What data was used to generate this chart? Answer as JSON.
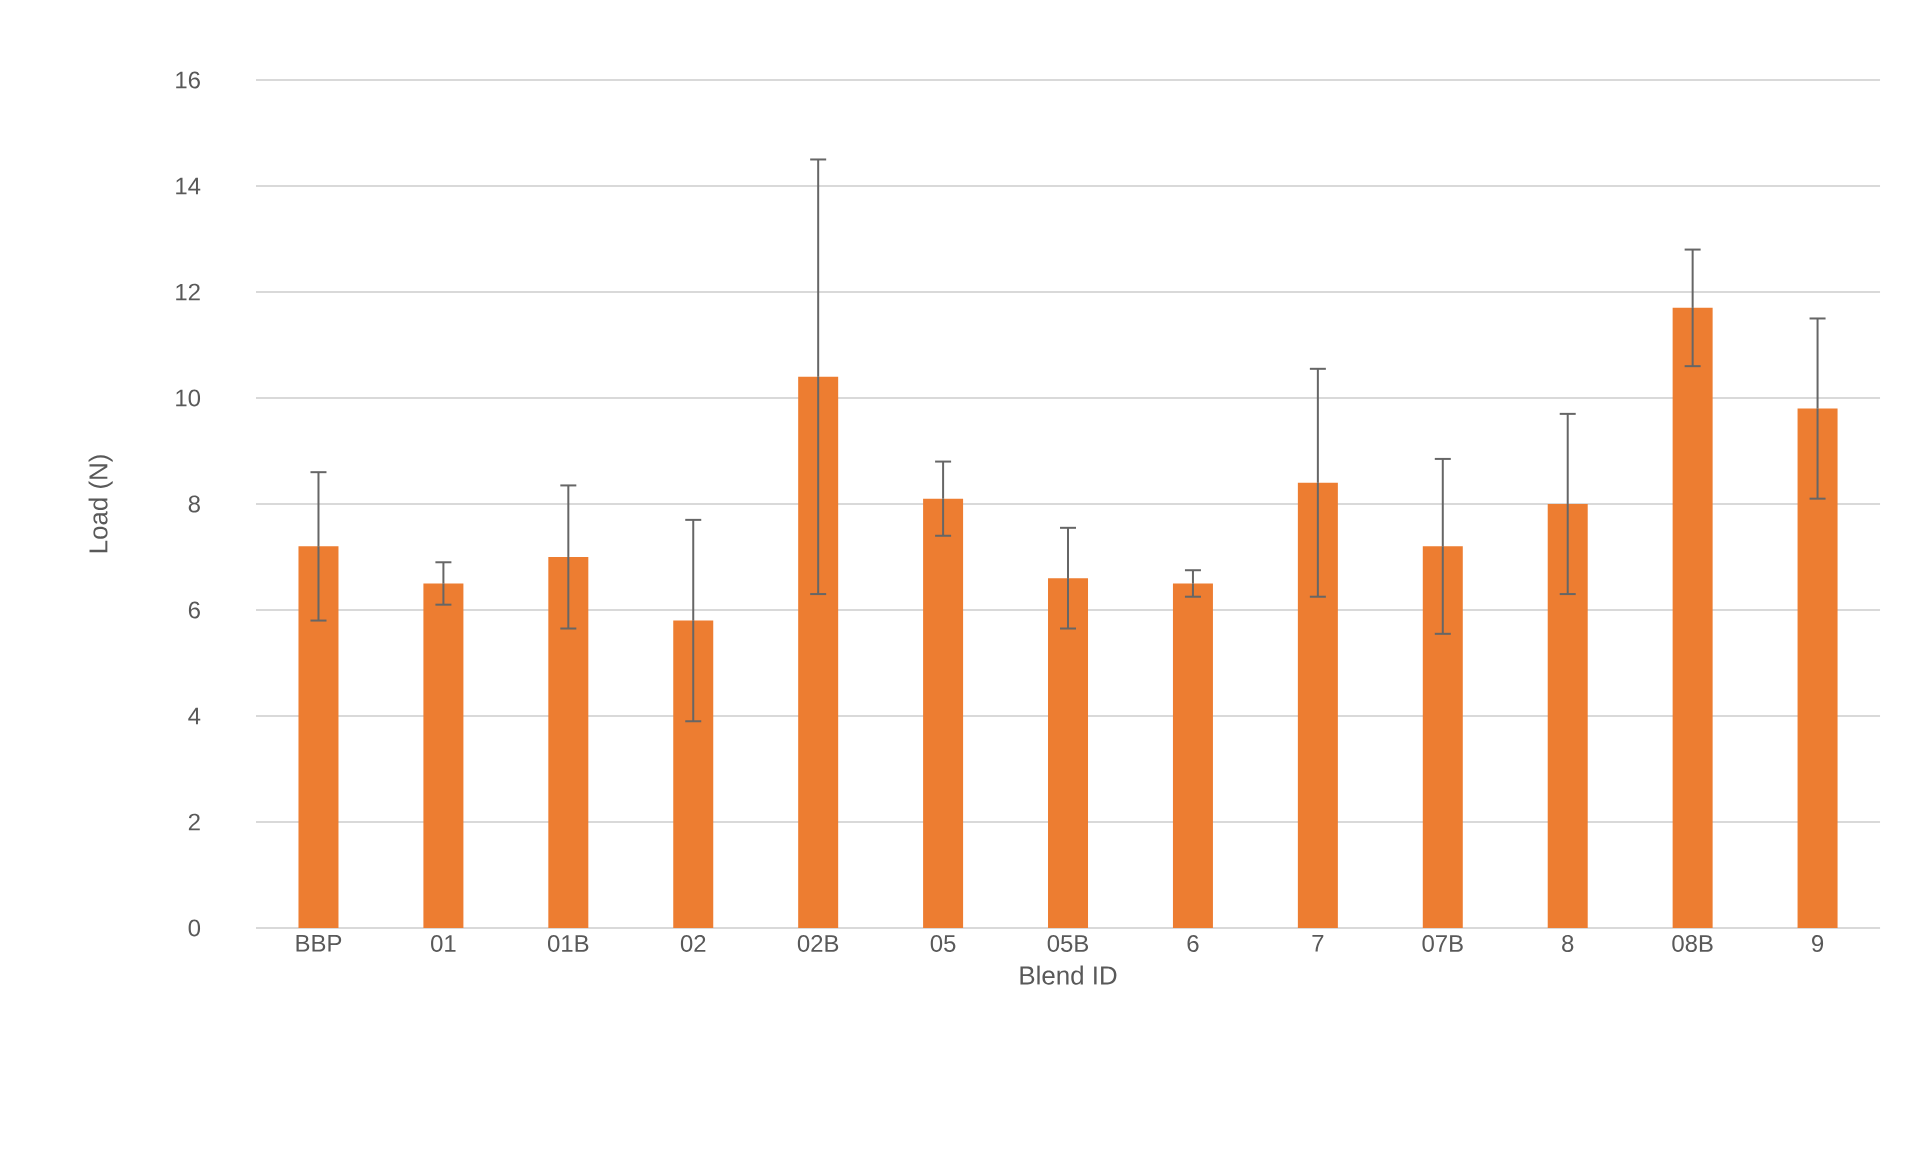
{
  "chart_data": {
    "type": "bar",
    "xlabel": "Blend ID",
    "ylabel": "Load (N)",
    "categories": [
      "BBP",
      "01",
      "01B",
      "02",
      "02B",
      "05",
      "05B",
      "6",
      "7",
      "07B",
      "8",
      "08B",
      "9"
    ],
    "values": [
      7.2,
      6.5,
      7.0,
      5.8,
      10.4,
      8.1,
      6.6,
      6.5,
      8.4,
      7.2,
      8.0,
      11.7,
      9.8
    ],
    "errors": [
      1.4,
      0.4,
      1.35,
      1.9,
      4.1,
      0.7,
      0.95,
      0.25,
      2.15,
      1.65,
      1.7,
      1.1,
      1.7
    ],
    "color": "#ed7d31",
    "ylim": [
      0,
      16
    ],
    "yticks": [
      0,
      2,
      4,
      6,
      8,
      10,
      12,
      14,
      16
    ],
    "grid": "y"
  }
}
